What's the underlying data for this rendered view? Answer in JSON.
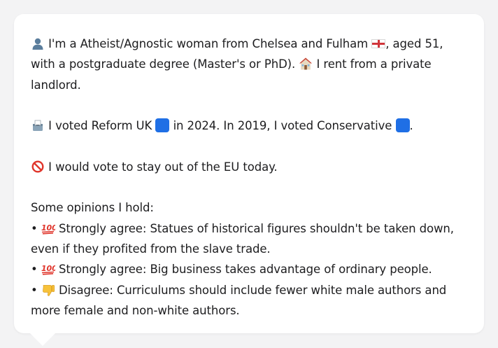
{
  "message": {
    "icons": {
      "person": "bust-silhouette-icon",
      "flag": "england-flag-icon",
      "house": "house-icon",
      "ballot": "ballot-box-icon",
      "blue_square": "blue-square-icon",
      "prohibited": "prohibited-icon",
      "hundred": "hundred-points-icon",
      "thumbs_down": "thumbs-down-icon"
    },
    "colors": {
      "reform_square": "#1f6fe5",
      "conservative_square": "#1f6fe5",
      "hundred_red": "#e0352b"
    },
    "intro": {
      "line1_text": "I'm a Atheist/Agnostic woman from Chelsea and Fulham",
      "line1_suffix": ", aged 51,",
      "line2_text": "with a postgraduate degree (Master's or PhD).",
      "line2_suffix": " I rent from a private",
      "line3_text": "landlord."
    },
    "voting": {
      "text_a": "I voted Reform UK",
      "text_b": " in 2024. In 2019, I voted Conservative",
      "text_c": "."
    },
    "eu": {
      "text": "I would vote to stay out of the EU today."
    },
    "opinions": {
      "heading": "Some opinions I hold:",
      "bullet": "•",
      "items": [
        {
          "line1": "Strongly agree: Statues of historical figures shouldn't be taken down,",
          "line2": "even if they profited from the slave trade."
        },
        {
          "line1": "Strongly agree: Big business takes advantage of ordinary people."
        },
        {
          "line1": "Disagree: Curriculums should include fewer white male authors and",
          "line2": "more female and non-white authors."
        }
      ]
    }
  }
}
